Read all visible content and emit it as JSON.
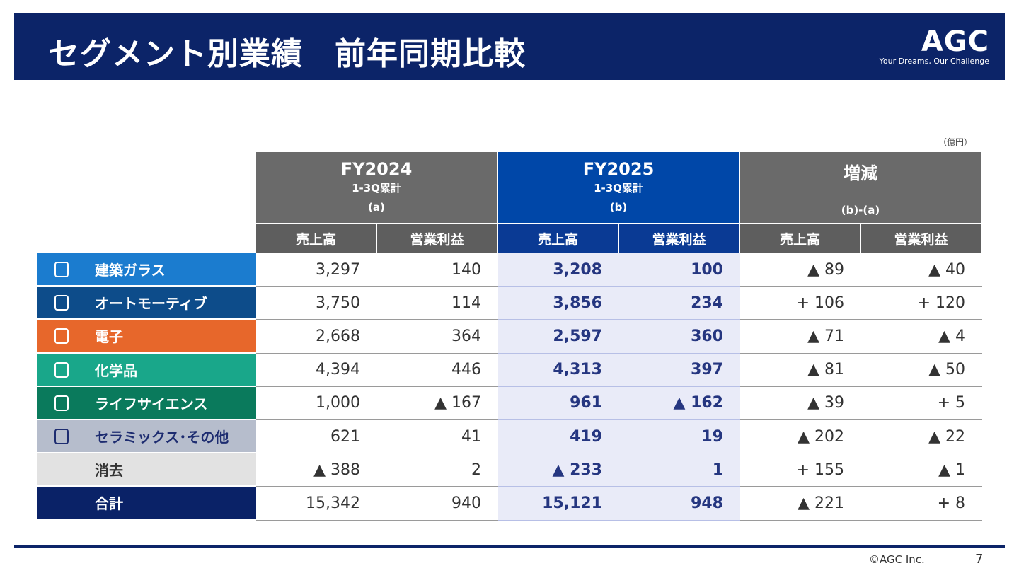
{
  "header": {
    "title": "セグメント別業績　前年同期比較",
    "logo": "AGC",
    "tagline": "Your Dreams, Our Challenge"
  },
  "unit": "（億円）",
  "table": {
    "groups": [
      {
        "title": "FY2024",
        "subtitle": "1-3Q累計",
        "code": "(a)"
      },
      {
        "title": "FY2025",
        "subtitle": "1-3Q累計",
        "code": "(b)"
      },
      {
        "title": "増減",
        "code": "(b)-(a)"
      }
    ],
    "columns": [
      "売上高",
      "営業利益",
      "売上高",
      "営業利益",
      "売上高",
      "営業利益"
    ],
    "rows": [
      {
        "segment": "建築ガラス",
        "cells": [
          "3,297",
          "140",
          "3,208",
          "100",
          "▲ 89",
          "▲ 40"
        ]
      },
      {
        "segment": "オートモーティブ",
        "cells": [
          "3,750",
          "114",
          "3,856",
          "234",
          "+ 106",
          "+ 120"
        ]
      },
      {
        "segment": "電子",
        "cells": [
          "2,668",
          "364",
          "2,597",
          "360",
          "▲ 71",
          "▲ 4"
        ]
      },
      {
        "segment": "化学品",
        "cells": [
          "4,394",
          "446",
          "4,313",
          "397",
          "▲ 81",
          "▲ 50"
        ]
      },
      {
        "segment": "ライフサイエンス",
        "cells": [
          "1,000",
          "▲ 167",
          "961",
          "▲ 162",
          "▲ 39",
          "+ 5"
        ]
      },
      {
        "segment": "セラミックス･その他",
        "cells": [
          "621",
          "41",
          "419",
          "19",
          "▲ 202",
          "▲ 22"
        ]
      },
      {
        "segment": "消去",
        "cells": [
          "▲ 388",
          "2",
          "▲ 233",
          "1",
          "+ 155",
          "▲ 1"
        ]
      },
      {
        "segment": "合計",
        "cells": [
          "15,342",
          "940",
          "15,121",
          "948",
          "▲ 221",
          "+ 8"
        ]
      }
    ]
  },
  "footer": {
    "copyright": "©AGC Inc.",
    "page": "7"
  }
}
